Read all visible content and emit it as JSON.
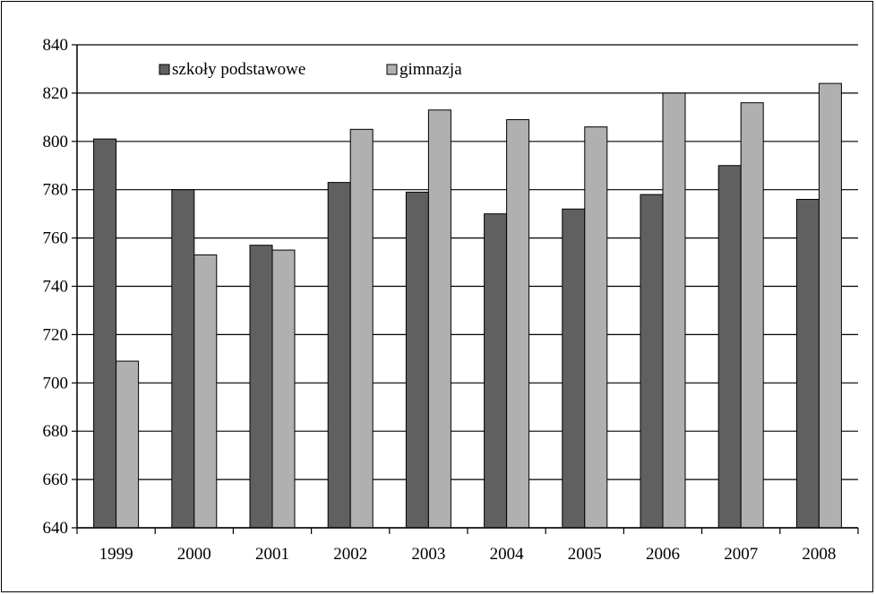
{
  "chart_data": {
    "type": "bar",
    "categories": [
      "1999",
      "2000",
      "2001",
      "2002",
      "2003",
      "2004",
      "2005",
      "2006",
      "2007",
      "2008"
    ],
    "series": [
      {
        "name": "szkoły podstawowe",
        "color": "#606060",
        "values": [
          801,
          780,
          757,
          783,
          779,
          770,
          772,
          778,
          790,
          776
        ]
      },
      {
        "name": "gimnazja",
        "color": "#b0b0b0",
        "values": [
          709,
          753,
          755,
          805,
          813,
          809,
          806,
          820,
          816,
          824
        ]
      }
    ],
    "ylim": [
      640,
      840
    ],
    "yticks": [
      640,
      660,
      680,
      700,
      720,
      740,
      760,
      780,
      800,
      820,
      840
    ],
    "grid": true,
    "legend": "top-left"
  }
}
